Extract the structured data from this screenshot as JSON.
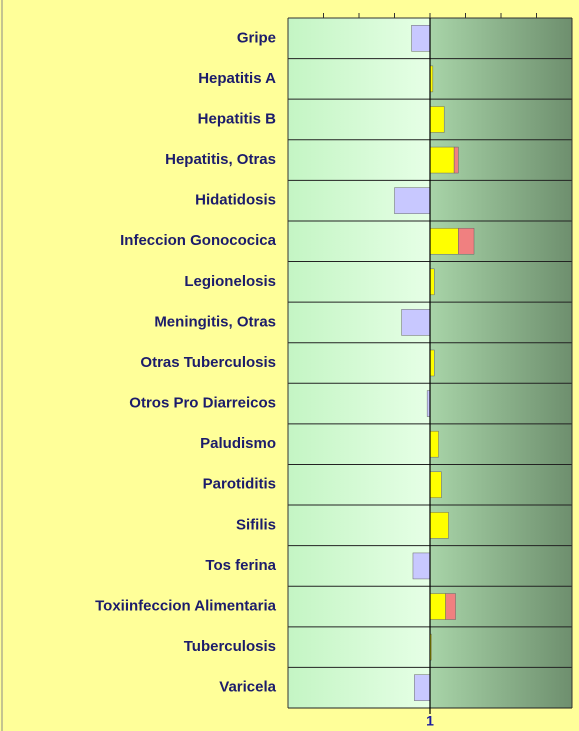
{
  "chart_data": {
    "type": "bar",
    "categories": [
      "Gripe",
      "Hepatitis A",
      "Hepatitis B",
      "Hepatitis, Otras",
      "Hidatidosis",
      "Infeccion Gonococica",
      "Legionelosis",
      "Meningitis, Otras",
      "Otras Tuberculosis",
      "Otros Pro Diarreicos",
      "Paludismo",
      "Parotiditis",
      "Sifilis",
      "Tos ferina",
      "Toxiinfeccion Alimentaria",
      "Tuberculosis",
      "Varicela"
    ],
    "values": [
      0.87,
      1.02,
      1.1,
      1.17,
      0.75,
      1.2,
      1.03,
      0.8,
      1.03,
      0.98,
      1.06,
      1.08,
      1.13,
      0.88,
      1.11,
      1.01,
      0.89
    ],
    "extra": [
      null,
      null,
      null,
      0.03,
      null,
      0.11,
      null,
      null,
      null,
      null,
      null,
      null,
      null,
      null,
      0.07,
      null,
      null
    ],
    "color_above": "#ffff00",
    "color_below": "#c8c8ff",
    "color_extra": "#f08080",
    "xlim": [
      0,
      2
    ],
    "xticks": [
      1
    ],
    "minor_xticks": [
      0.25,
      0.5,
      0.75,
      1,
      1.25,
      1.5,
      1.75
    ]
  }
}
